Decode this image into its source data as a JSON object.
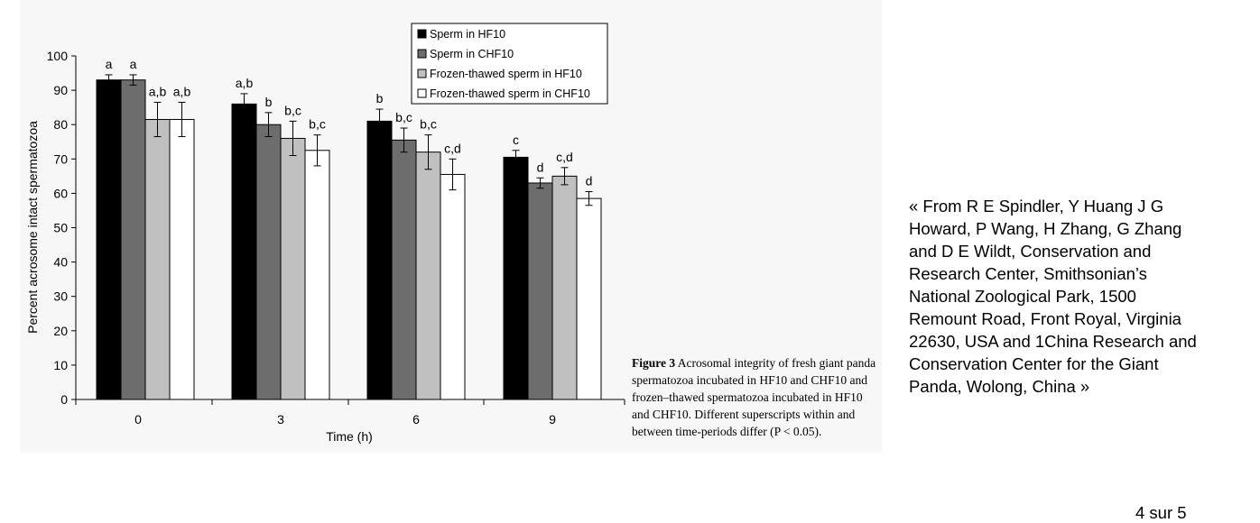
{
  "chart_data": {
    "type": "bar",
    "categories": [
      "0",
      "3",
      "6",
      "9"
    ],
    "xlabel": "Time (h)",
    "ylabel": "Percent acrosome intact spermatozoa",
    "ylim": [
      0,
      100
    ],
    "yticks": [
      "0",
      "10",
      "20",
      "30",
      "40",
      "50",
      "60",
      "70",
      "80",
      "90",
      "100"
    ],
    "grid": false,
    "legend_position": "top-right",
    "series": [
      {
        "name": "Sperm in HF10",
        "color": "#000000",
        "values": [
          93,
          86,
          81,
          70.5
        ],
        "errors": [
          1.5,
          3,
          3.5,
          2
        ],
        "labels": [
          "a",
          "a,b",
          "b",
          "c"
        ]
      },
      {
        "name": "Sperm in CHF10",
        "color": "#6d6d6d",
        "values": [
          93,
          80,
          75.5,
          63
        ],
        "errors": [
          1.5,
          3.5,
          3.5,
          1.5
        ],
        "labels": [
          "a",
          "b",
          "b,c",
          "d"
        ]
      },
      {
        "name": "Frozen-thawed sperm in HF10",
        "color": "#c0c0c0",
        "values": [
          81.5,
          76,
          72,
          65
        ],
        "errors": [
          5,
          5,
          5,
          2.5
        ],
        "labels": [
          "a,b",
          "b,c",
          "b,c",
          "c,d"
        ]
      },
      {
        "name": "Frozen-thawed sperm in CHF10",
        "color": "#ffffff",
        "values": [
          81.5,
          72.5,
          65.5,
          58.5
        ],
        "errors": [
          5,
          4.5,
          4.5,
          2
        ],
        "labels": [
          "a,b",
          "b,c",
          "c,d",
          "d"
        ]
      }
    ]
  },
  "caption": {
    "figure_label": "Figure 3",
    "text": "Acrosomal integrity of fresh giant panda spermatozoa incubated in HF10 and CHF10 and frozen–thawed spermatozoa incubated in HF10 and CHF10. Different superscripts within and between time-periods differ (P < 0.05)."
  },
  "source_note": "« From R E Spindler, Y Huang J G Howard, P Wang, H Zhang, G Zhang and D E Wildt, Conservation and Research Center, Smithsonian’s National Zoological Park, 1500 Remount Road, Front Royal, Virginia 22630, USA and 1China Research and Conservation Center for the Giant Panda, Wolong, China »",
  "page_counter": "4 sur 5"
}
